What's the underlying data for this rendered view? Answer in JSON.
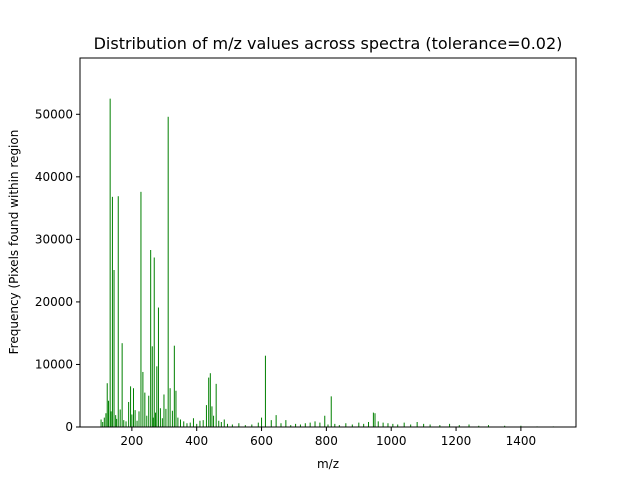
{
  "chart_data": {
    "type": "bar",
    "title": "Distribution of m/z values across spectra (tolerance=0.02)",
    "xlabel": "m/z",
    "ylabel": "Frequency (Pixels found within region",
    "xlim": [
      40,
      1570
    ],
    "ylim": [
      0,
      59000
    ],
    "xticks": [
      200,
      400,
      600,
      800,
      1000,
      1200,
      1400
    ],
    "yticks": [
      0,
      10000,
      20000,
      30000,
      40000,
      50000
    ],
    "grid": false,
    "bar_color": "#008000",
    "series": [
      {
        "x": [
          105,
          110,
          115,
          120,
          124,
          128,
          133,
          136,
          140,
          145,
          150,
          153,
          158,
          164,
          170,
          175,
          182,
          190,
          196,
          200,
          205,
          210,
          216,
          222,
          228,
          234,
          240,
          246,
          252,
          258,
          263,
          266,
          269,
          273,
          277,
          282,
          288,
          294,
          299,
          305,
          312,
          318,
          325,
          331,
          336,
          342,
          350,
          360,
          370,
          380,
          390,
          400,
          410,
          420,
          430,
          437,
          442,
          447,
          452,
          460,
          468,
          476,
          485,
          495,
          510,
          530,
          550,
          570,
          590,
          600,
          612,
          630,
          645,
          660,
          675,
          690,
          705,
          720,
          735,
          750,
          765,
          780,
          795,
          805,
          815,
          826,
          840,
          860,
          880,
          900,
          915,
          930,
          945,
          950,
          960,
          975,
          990,
          1005,
          1020,
          1040,
          1060,
          1080,
          1100,
          1120,
          1150,
          1180,
          1210,
          1240,
          1270,
          1300,
          1350,
          1400,
          1450,
          1500
        ],
        "values": [
          1200,
          800,
          1500,
          2200,
          7000,
          4200,
          52500,
          2500,
          36800,
          25100,
          1900,
          1300,
          36900,
          2800,
          13400,
          1100,
          900,
          4000,
          6500,
          2000,
          6200,
          2700,
          1000,
          2500,
          37600,
          8800,
          5500,
          1800,
          5000,
          28300,
          12900,
          1500,
          27100,
          2300,
          9700,
          19100,
          3000,
          1400,
          5200,
          2900,
          49600,
          6200,
          2600,
          13000,
          5800,
          1500,
          1200,
          900,
          600,
          700,
          1400,
          500,
          1000,
          1100,
          3500,
          7900,
          8600,
          3300,
          1800,
          6900,
          1000,
          800,
          1200,
          500,
          400,
          600,
          300,
          400,
          700,
          1500,
          11400,
          1100,
          1900,
          600,
          1100,
          300,
          500,
          400,
          600,
          700,
          900,
          700,
          1800,
          400,
          4900,
          500,
          300,
          600,
          400,
          700,
          500,
          800,
          2300,
          2200,
          900,
          700,
          600,
          500,
          400,
          700,
          400,
          800,
          500,
          400,
          300,
          500,
          300,
          400,
          200,
          300,
          200,
          200,
          100,
          100
        ]
      }
    ]
  }
}
